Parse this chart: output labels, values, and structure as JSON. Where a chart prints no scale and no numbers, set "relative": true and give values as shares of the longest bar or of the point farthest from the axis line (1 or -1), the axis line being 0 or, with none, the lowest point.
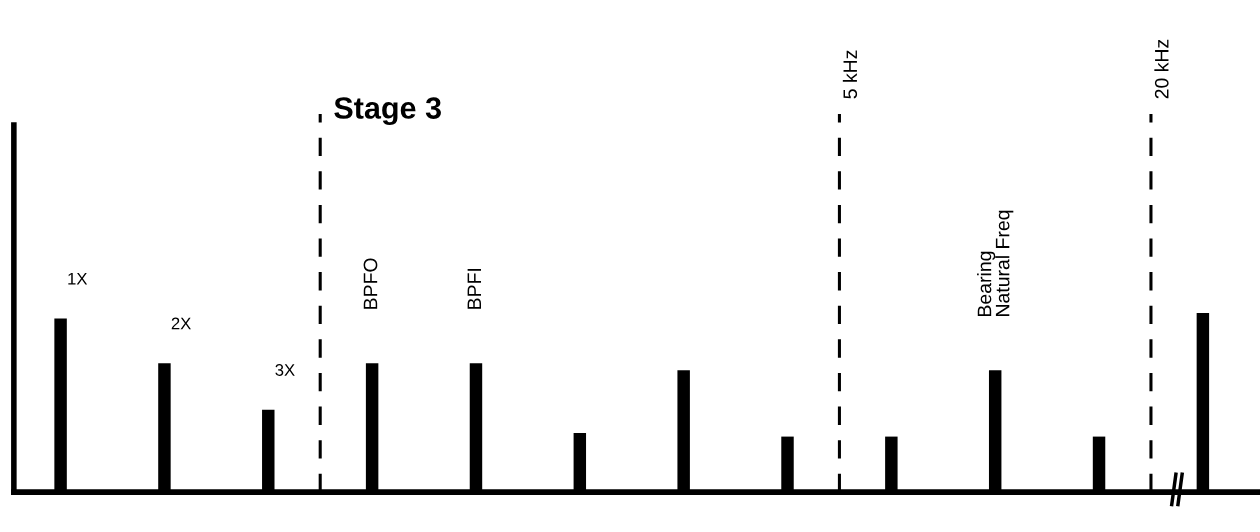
{
  "chart_data": {
    "type": "bar",
    "title": "Stage 3",
    "relative": true,
    "color": "#000000",
    "categories": [
      "1X",
      "2X",
      "3X",
      "BPFO",
      "BPFI",
      null,
      null,
      null,
      null,
      "Bearing\nNatural Freq",
      null,
      null
    ],
    "values": [
      0.97,
      0.72,
      0.46,
      0.72,
      0.72,
      0.33,
      0.68,
      0.31,
      0.31,
      0.68,
      0.31,
      1.0
    ],
    "annotations": [
      "5 kHz",
      "20 kHz"
    ]
  }
}
